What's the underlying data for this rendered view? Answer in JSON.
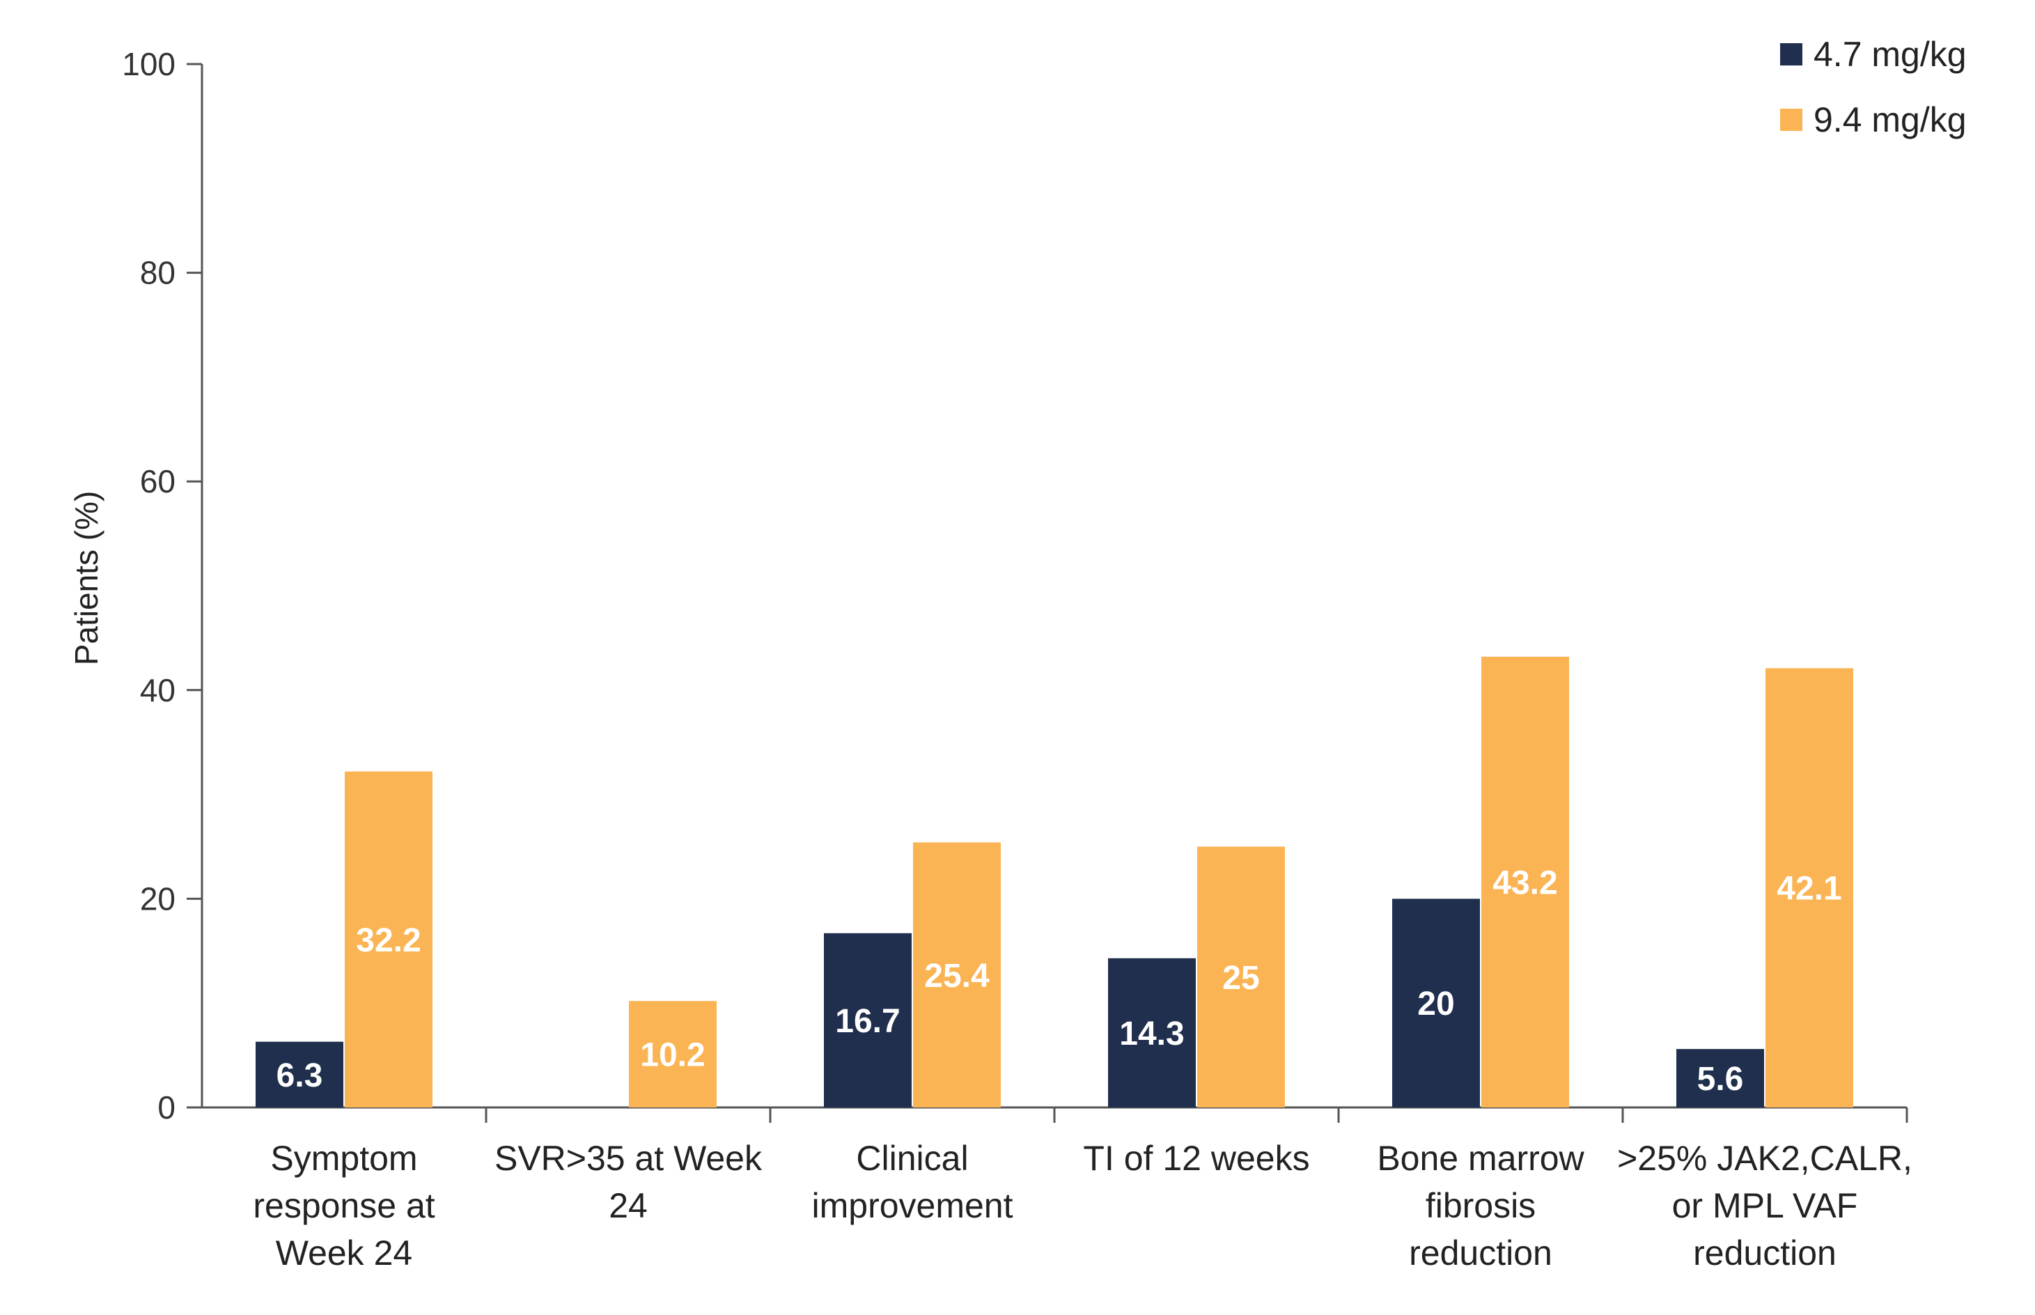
{
  "chart_data": {
    "type": "bar",
    "ylabel": "Patients (%)",
    "xlabel": "",
    "ylim": [
      0,
      100
    ],
    "yticks": [
      0,
      20,
      40,
      60,
      80,
      100
    ],
    "grid": false,
    "legend_position": "top-right",
    "categories": [
      [
        "Symptom",
        "response at",
        "Week 24"
      ],
      [
        "SVR>35 at Week",
        "24"
      ],
      [
        "Clinical",
        "improvement"
      ],
      [
        "TI of 12 weeks"
      ],
      [
        "Bone marrow",
        "fibrosis",
        "reduction"
      ],
      [
        ">25% JAK2,CALR,",
        "or MPL VAF",
        "reduction"
      ]
    ],
    "series": [
      {
        "name": "4.7 mg/kg",
        "color": "#1f2f4d",
        "values": [
          6.3,
          null,
          16.7,
          14.3,
          20,
          5.6
        ],
        "labels": [
          "6.3",
          "",
          "16.7",
          "14.3",
          "20",
          "5.6"
        ]
      },
      {
        "name": "9.4 mg/kg",
        "color": "#fbb454",
        "values": [
          32.2,
          10.2,
          25.4,
          25,
          43.2,
          42.1
        ],
        "labels": [
          "32.2",
          "10.2",
          "25.4",
          "25",
          "43.2",
          "42.1"
        ]
      }
    ]
  }
}
